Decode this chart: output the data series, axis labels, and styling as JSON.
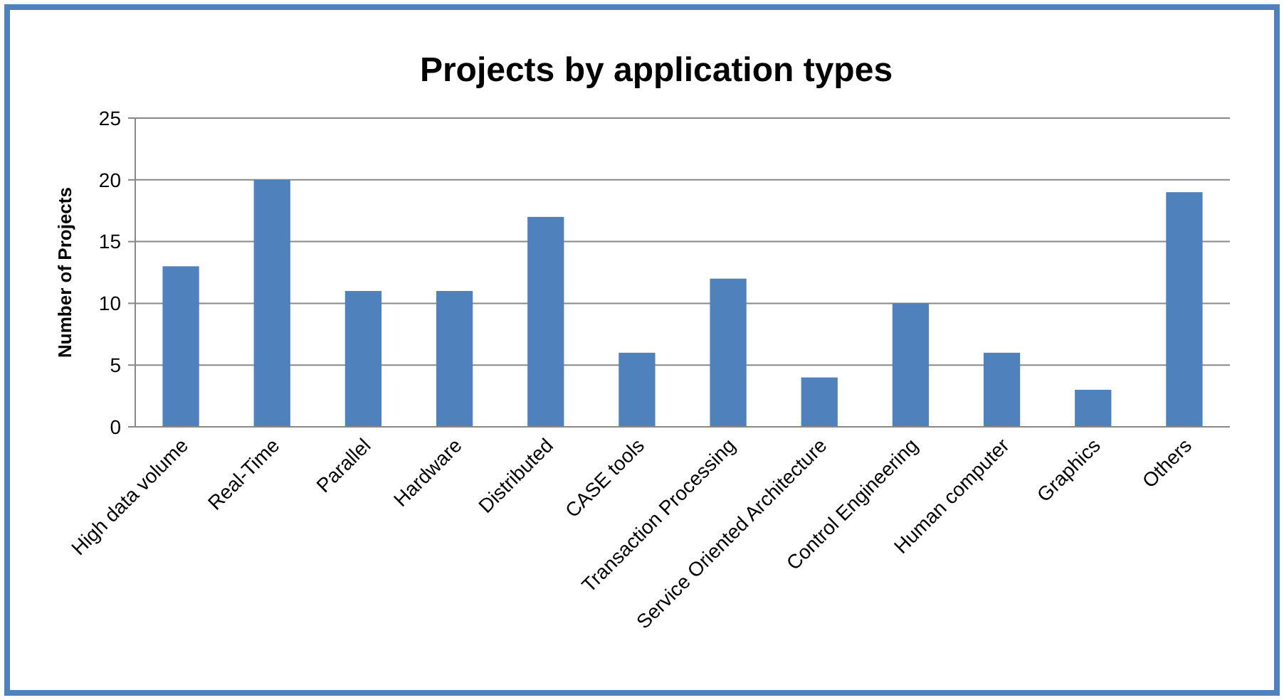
{
  "chart_data": {
    "type": "bar",
    "title": "Projects by application types",
    "ylabel": "Number of Projects",
    "categories": [
      "High data volume",
      "Real-Time",
      "Parallel",
      "Hardware",
      "Distributed",
      "CASE tools",
      "Transaction Processing",
      "Service Oriented Architecture",
      "Control Engineering",
      "Human computer",
      "Graphics",
      "Others"
    ],
    "values": [
      13,
      20,
      11,
      11,
      17,
      6,
      12,
      4,
      10,
      6,
      3,
      19
    ],
    "color": "#4f81bd",
    "ylim": [
      0,
      25
    ],
    "yticks": [
      0,
      5,
      10,
      15,
      20,
      25
    ],
    "grid": "y"
  }
}
